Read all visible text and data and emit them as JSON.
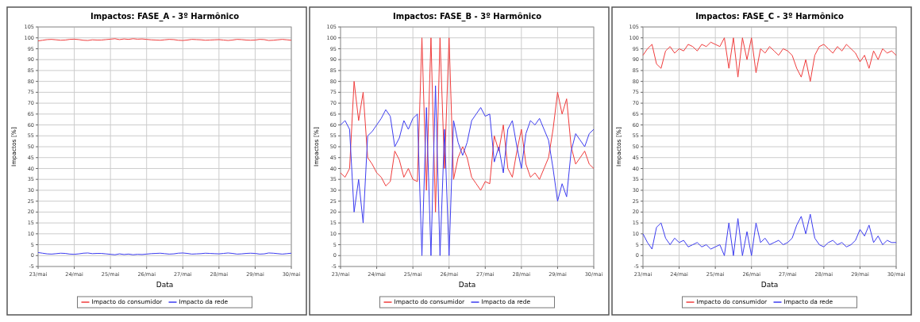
{
  "chart_data": [
    {
      "type": "line",
      "title": "Impactos: FASE_A - 3º Harmônico",
      "xlabel": "Data",
      "ylabel": "Impactos [%]",
      "xlim": [
        23,
        30
      ],
      "ylim": [
        -5,
        105
      ],
      "grid": true,
      "legend": "bottom",
      "xticks": [
        {
          "value": 23,
          "label": "23/mai"
        },
        {
          "value": 24,
          "label": "24/mai"
        },
        {
          "value": 25,
          "label": "25/mai"
        },
        {
          "value": 26,
          "label": "26/mai"
        },
        {
          "value": 27,
          "label": "27/mai"
        },
        {
          "value": 28,
          "label": "28/mai"
        },
        {
          "value": 29,
          "label": "29/mai"
        },
        {
          "value": 30,
          "label": "30/mai"
        }
      ],
      "yticks": [
        -5,
        0,
        5,
        10,
        15,
        20,
        25,
        30,
        35,
        40,
        45,
        50,
        55,
        60,
        65,
        70,
        75,
        80,
        85,
        90,
        95,
        100,
        105
      ],
      "x": [
        23,
        23.125,
        23.25,
        23.375,
        23.5,
        23.625,
        23.75,
        23.875,
        24,
        24.125,
        24.25,
        24.375,
        24.5,
        24.625,
        24.75,
        24.875,
        25,
        25.125,
        25.25,
        25.375,
        25.5,
        25.625,
        25.75,
        25.875,
        26,
        26.125,
        26.25,
        26.375,
        26.5,
        26.625,
        26.75,
        26.875,
        27,
        27.125,
        27.25,
        27.375,
        27.5,
        27.625,
        27.75,
        27.875,
        28,
        28.125,
        28.25,
        28.375,
        28.5,
        28.625,
        28.75,
        28.875,
        29,
        29.125,
        29.25,
        29.375,
        29.5,
        29.625,
        29.75,
        29.875,
        30
      ],
      "series": [
        {
          "name": "Impacto do consumidor",
          "color": "#f03c3c",
          "values": [
            98.6,
            98.9,
            99.2,
            99.3,
            99.1,
            98.9,
            99.0,
            99.3,
            99.4,
            99.2,
            98.9,
            98.8,
            99.1,
            99.0,
            99.0,
            99.2,
            99.4,
            99.6,
            99.2,
            99.5,
            99.3,
            99.6,
            99.4,
            99.5,
            99.3,
            99.1,
            99.0,
            98.9,
            99.1,
            99.3,
            99.2,
            98.9,
            98.8,
            99.0,
            99.3,
            99.2,
            99.1,
            98.9,
            99.0,
            99.1,
            99.2,
            99.0,
            98.8,
            99.0,
            99.3,
            99.2,
            99.0,
            98.9,
            99.0,
            99.3,
            99.2,
            98.8,
            98.9,
            99.1,
            99.3,
            99.1,
            98.9
          ]
        },
        {
          "name": "Impacto da rede",
          "color": "#3c3cf0",
          "values": [
            1.4,
            1.1,
            0.8,
            0.7,
            0.9,
            1.1,
            1.0,
            0.7,
            0.6,
            0.8,
            1.1,
            1.2,
            0.9,
            1.0,
            1.0,
            0.8,
            0.6,
            0.4,
            0.8,
            0.5,
            0.7,
            0.4,
            0.6,
            0.5,
            0.7,
            0.9,
            1.0,
            1.1,
            0.9,
            0.7,
            0.8,
            1.1,
            1.2,
            1.0,
            0.7,
            0.8,
            0.9,
            1.1,
            1.0,
            0.9,
            0.8,
            1.0,
            1.2,
            1.0,
            0.7,
            0.8,
            1.0,
            1.1,
            1.0,
            0.7,
            0.8,
            1.2,
            1.1,
            0.9,
            0.7,
            0.9,
            1.1
          ]
        }
      ]
    },
    {
      "type": "line",
      "title": "Impactos: FASE_B - 3º Harmônico",
      "xlabel": "Data",
      "ylabel": "Impactos [%]",
      "xlim": [
        23,
        30
      ],
      "ylim": [
        -5,
        105
      ],
      "grid": true,
      "legend": "bottom",
      "xticks": [
        {
          "value": 23,
          "label": "23/mai"
        },
        {
          "value": 24,
          "label": "24/mai"
        },
        {
          "value": 25,
          "label": "25/mai"
        },
        {
          "value": 26,
          "label": "26/mai"
        },
        {
          "value": 27,
          "label": "27/mai"
        },
        {
          "value": 28,
          "label": "28/mai"
        },
        {
          "value": 29,
          "label": "29/mai"
        },
        {
          "value": 30,
          "label": "30/mai"
        }
      ],
      "yticks": [
        -5,
        0,
        5,
        10,
        15,
        20,
        25,
        30,
        35,
        40,
        45,
        50,
        55,
        60,
        65,
        70,
        75,
        80,
        85,
        90,
        95,
        100,
        105
      ],
      "x": [
        23,
        23.125,
        23.25,
        23.375,
        23.5,
        23.625,
        23.75,
        23.875,
        24,
        24.125,
        24.25,
        24.375,
        24.5,
        24.625,
        24.75,
        24.875,
        25,
        25.125,
        25.25,
        25.375,
        25.5,
        25.625,
        25.75,
        25.875,
        26,
        26.125,
        26.25,
        26.375,
        26.5,
        26.625,
        26.75,
        26.875,
        27,
        27.125,
        27.25,
        27.375,
        27.5,
        27.625,
        27.75,
        27.875,
        28,
        28.125,
        28.25,
        28.375,
        28.5,
        28.625,
        28.75,
        28.875,
        29,
        29.125,
        29.25,
        29.375,
        29.5,
        29.625,
        29.75,
        29.875,
        30
      ],
      "series": [
        {
          "name": "Impacto do consumidor",
          "color": "#f03c3c",
          "values": [
            38,
            36,
            40,
            80,
            62,
            75,
            45,
            42,
            38,
            36,
            32,
            34,
            48,
            44,
            36,
            40,
            35,
            34,
            100,
            30,
            100,
            20,
            100,
            40,
            100,
            35,
            45,
            50,
            45,
            36,
            33,
            30,
            34,
            33,
            55,
            48,
            60,
            40,
            36,
            48,
            58,
            42,
            36,
            38,
            35,
            40,
            45,
            58,
            75,
            65,
            72,
            50,
            42,
            45,
            48,
            42,
            40
          ]
        },
        {
          "name": "Impacto da rede",
          "color": "#3c3cf0",
          "values": [
            60,
            62,
            58,
            20,
            35,
            15,
            55,
            57,
            60,
            63,
            67,
            64,
            50,
            54,
            62,
            58,
            63,
            65,
            0,
            68,
            0,
            78,
            0,
            58,
            0,
            62,
            52,
            46,
            52,
            62,
            65,
            68,
            64,
            65,
            43,
            50,
            38,
            58,
            62,
            50,
            40,
            56,
            62,
            60,
            63,
            58,
            53,
            40,
            25,
            33,
            27,
            48,
            56,
            53,
            50,
            56,
            58
          ]
        }
      ]
    },
    {
      "type": "line",
      "title": "Impactos: FASE_C - 3º Harmônico",
      "xlabel": "Data",
      "ylabel": "Impactos [%]",
      "xlim": [
        23,
        30
      ],
      "ylim": [
        -5,
        105
      ],
      "grid": true,
      "legend": "bottom",
      "xticks": [
        {
          "value": 23,
          "label": "23/mai"
        },
        {
          "value": 24,
          "label": "24/mai"
        },
        {
          "value": 25,
          "label": "25/mai"
        },
        {
          "value": 26,
          "label": "26/mai"
        },
        {
          "value": 27,
          "label": "27/mai"
        },
        {
          "value": 28,
          "label": "28/mai"
        },
        {
          "value": 29,
          "label": "29/mai"
        },
        {
          "value": 30,
          "label": "30/mai"
        }
      ],
      "yticks": [
        -5,
        0,
        5,
        10,
        15,
        20,
        25,
        30,
        35,
        40,
        45,
        50,
        55,
        60,
        65,
        70,
        75,
        80,
        85,
        90,
        95,
        100,
        105
      ],
      "x": [
        23,
        23.125,
        23.25,
        23.375,
        23.5,
        23.625,
        23.75,
        23.875,
        24,
        24.125,
        24.25,
        24.375,
        24.5,
        24.625,
        24.75,
        24.875,
        25,
        25.125,
        25.25,
        25.375,
        25.5,
        25.625,
        25.75,
        25.875,
        26,
        26.125,
        26.25,
        26.375,
        26.5,
        26.625,
        26.75,
        26.875,
        27,
        27.125,
        27.25,
        27.375,
        27.5,
        27.625,
        27.75,
        27.875,
        28,
        28.125,
        28.25,
        28.375,
        28.5,
        28.625,
        28.75,
        28.875,
        29,
        29.125,
        29.25,
        29.375,
        29.5,
        29.625,
        29.75,
        29.875,
        30
      ],
      "series": [
        {
          "name": "Impacto do consumidor",
          "color": "#f03c3c",
          "values": [
            92,
            95,
            97,
            88,
            86,
            94,
            96,
            93,
            95,
            94,
            97,
            96,
            94,
            97,
            96,
            98,
            97,
            96,
            100,
            86,
            100,
            82,
            100,
            90,
            100,
            84,
            95,
            93,
            96,
            94,
            92,
            95,
            94,
            92,
            86,
            82,
            90,
            80,
            92,
            96,
            97,
            95,
            93,
            96,
            94,
            97,
            95,
            93,
            89,
            92,
            86,
            94,
            90,
            95,
            93,
            94,
            92
          ]
        },
        {
          "name": "Impacto da rede",
          "color": "#3c3cf0",
          "values": [
            10,
            6,
            3,
            13,
            15,
            8,
            5,
            8,
            6,
            7,
            4,
            5,
            6,
            4,
            5,
            3,
            4,
            5,
            0,
            15,
            0,
            17,
            0,
            11,
            0,
            15,
            6,
            8,
            5,
            6,
            7,
            5,
            6,
            8,
            14,
            18,
            10,
            19,
            8,
            5,
            4,
            6,
            7,
            5,
            6,
            4,
            5,
            7,
            12,
            9,
            14,
            6,
            9,
            5,
            7,
            6,
            6
          ]
        }
      ]
    }
  ]
}
